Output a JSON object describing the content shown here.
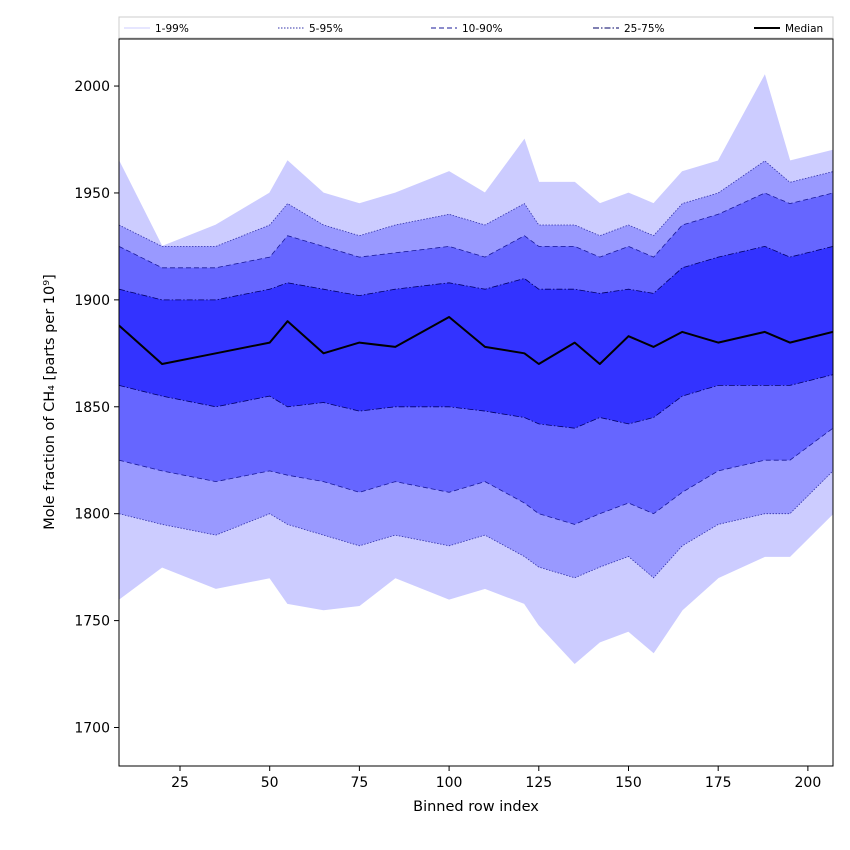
{
  "chart_data": {
    "type": "area",
    "xlabel": "Binned row index",
    "ylabel": "Mole fraction of CH₄ [parts per 10⁹]",
    "xlim": [
      8,
      207
    ],
    "ylim": [
      1682,
      2022
    ],
    "xticks": [
      25,
      50,
      75,
      100,
      125,
      150,
      175,
      200
    ],
    "yticks": [
      1700,
      1750,
      1800,
      1850,
      1900,
      1950,
      2000
    ],
    "grid": false,
    "legend_position": "top",
    "x": [
      8,
      20,
      35,
      50,
      55,
      65,
      75,
      85,
      100,
      110,
      121,
      125,
      135,
      142,
      150,
      157,
      165,
      175,
      188,
      195,
      207
    ],
    "bands": [
      {
        "name": "1-99%",
        "fill": "#ccccff",
        "line": "#ccccff",
        "dash": "solid",
        "lower": [
          1760,
          1775,
          1765,
          1770,
          1758,
          1755,
          1757,
          1770,
          1760,
          1765,
          1758,
          1748,
          1730,
          1740,
          1745,
          1735,
          1755,
          1770,
          1780,
          1780,
          1800
        ],
        "upper": [
          1965,
          1925,
          1935,
          1950,
          1965,
          1950,
          1945,
          1950,
          1960,
          1950,
          1975,
          1955,
          1955,
          1945,
          1950,
          1945,
          1960,
          1965,
          2005,
          1965,
          1970
        ]
      },
      {
        "name": "5-95%",
        "fill": "#9999ff",
        "line": "#3333aa",
        "dash": "dotted",
        "lower": [
          1800,
          1795,
          1790,
          1800,
          1795,
          1790,
          1785,
          1790,
          1785,
          1790,
          1780,
          1775,
          1770,
          1775,
          1780,
          1770,
          1785,
          1795,
          1800,
          1800,
          1820
        ],
        "upper": [
          1935,
          1925,
          1925,
          1935,
          1945,
          1935,
          1930,
          1935,
          1940,
          1935,
          1945,
          1935,
          1935,
          1930,
          1935,
          1930,
          1945,
          1950,
          1965,
          1955,
          1960
        ]
      },
      {
        "name": "10-90%",
        "fill": "#6666ff",
        "line": "#1a1a99",
        "dash": "dashed",
        "lower": [
          1825,
          1820,
          1815,
          1820,
          1818,
          1815,
          1810,
          1815,
          1810,
          1815,
          1805,
          1800,
          1795,
          1800,
          1805,
          1800,
          1810,
          1820,
          1825,
          1825,
          1840
        ],
        "upper": [
          1925,
          1915,
          1915,
          1920,
          1930,
          1925,
          1920,
          1922,
          1925,
          1920,
          1930,
          1925,
          1925,
          1920,
          1925,
          1920,
          1935,
          1940,
          1950,
          1945,
          1950
        ]
      },
      {
        "name": "25-75%",
        "fill": "#3333ff",
        "line": "#000066",
        "dash": "dashdot",
        "lower": [
          1860,
          1855,
          1850,
          1855,
          1850,
          1852,
          1848,
          1850,
          1850,
          1848,
          1845,
          1842,
          1840,
          1845,
          1842,
          1845,
          1855,
          1860,
          1860,
          1860,
          1865
        ],
        "upper": [
          1905,
          1900,
          1900,
          1905,
          1908,
          1905,
          1902,
          1905,
          1908,
          1905,
          1910,
          1905,
          1905,
          1903,
          1905,
          1903,
          1915,
          1920,
          1925,
          1920,
          1925
        ]
      }
    ],
    "series": [
      {
        "name": "Median",
        "color": "#000000",
        "values": [
          1888,
          1870,
          1875,
          1880,
          1890,
          1875,
          1880,
          1878,
          1892,
          1878,
          1875,
          1870,
          1880,
          1870,
          1883,
          1878,
          1885,
          1880,
          1885,
          1880,
          1885
        ]
      }
    ]
  }
}
